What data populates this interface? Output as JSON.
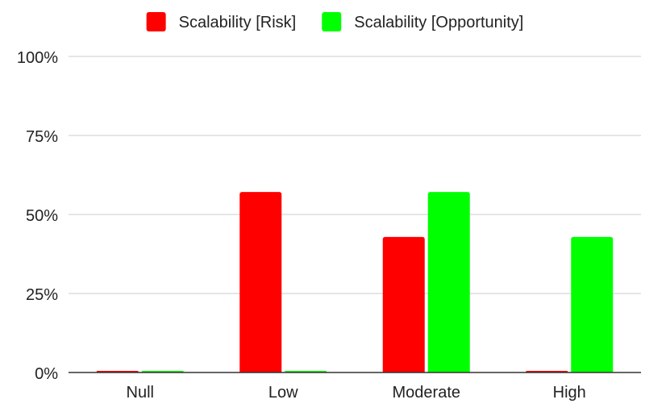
{
  "chart_data": {
    "type": "bar",
    "title": "",
    "xlabel": "",
    "ylabel": "",
    "categories": [
      "Null",
      "Low",
      "Moderate",
      "High"
    ],
    "series": [
      {
        "name": "Scalability [Risk]",
        "color": "#ff0000",
        "values": [
          0,
          57.1,
          42.9,
          0
        ]
      },
      {
        "name": "Scalability [Opportunity]",
        "color": "#00ff00",
        "values": [
          0,
          0,
          57.1,
          42.9
        ]
      }
    ],
    "ylim": [
      0,
      100
    ],
    "yticks": [
      "0%",
      "25%",
      "50%",
      "75%",
      "100%"
    ],
    "ytick_values": [
      0,
      25,
      50,
      75,
      100
    ],
    "grid": true,
    "legend_position": "top-center"
  }
}
